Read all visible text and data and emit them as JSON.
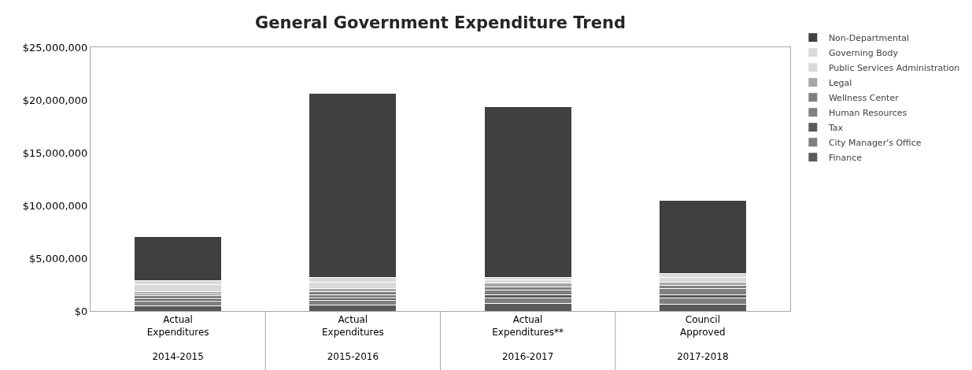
{
  "chart_data": {
    "type": "bar",
    "title": "General Government Expenditure Trend",
    "stacked": true,
    "legend": "right",
    "categories": [
      "Actual Expenditures\n2014-2015",
      "Actual Expenditures\n2015-2016",
      "Actual Expenditures**\n2016-2017",
      "Council Approved\n2017-2018"
    ],
    "ylim": [
      0,
      25000000
    ],
    "yticks": [
      {
        "value": 0,
        "label": "$0"
      },
      {
        "value": 5000000,
        "label": "$5,000,000"
      },
      {
        "value": 10000000,
        "label": "$10,000,000"
      },
      {
        "value": 15000000,
        "label": "$15,000,000"
      },
      {
        "value": 20000000,
        "label": "$20,000,000"
      },
      {
        "value": 25000000,
        "label": "$25,000,000"
      }
    ],
    "series": [
      {
        "name": "Finance",
        "color": "#595959",
        "values": [
          500000,
          550000,
          700000,
          600000
        ]
      },
      {
        "name": "City Manager's Office",
        "color": "#7f7f7f",
        "values": [
          400000,
          450000,
          500000,
          600000
        ]
      },
      {
        "name": "Tax",
        "color": "#595959",
        "values": [
          250000,
          250000,
          300000,
          350000
        ]
      },
      {
        "name": "Human Resources",
        "color": "#808080",
        "values": [
          300000,
          300000,
          500000,
          600000
        ]
      },
      {
        "name": "Wellness Center",
        "color": "#7f7f7f",
        "values": [
          150000,
          250000,
          300000,
          250000
        ]
      },
      {
        "name": "Legal",
        "color": "#a6a6a6",
        "values": [
          200000,
          350000,
          350000,
          350000
        ]
      },
      {
        "name": "Public Services Administration",
        "color": "#d9d9d9",
        "values": [
          700000,
          600000,
          300000,
          400000
        ]
      },
      {
        "name": "Governing Body",
        "color": "#d9d9d9",
        "values": [
          400000,
          400000,
          200000,
          400000
        ]
      },
      {
        "name": "Non-Departmental",
        "color": "#404040",
        "values": [
          4150000,
          17500000,
          16250000,
          6950000
        ]
      }
    ]
  }
}
